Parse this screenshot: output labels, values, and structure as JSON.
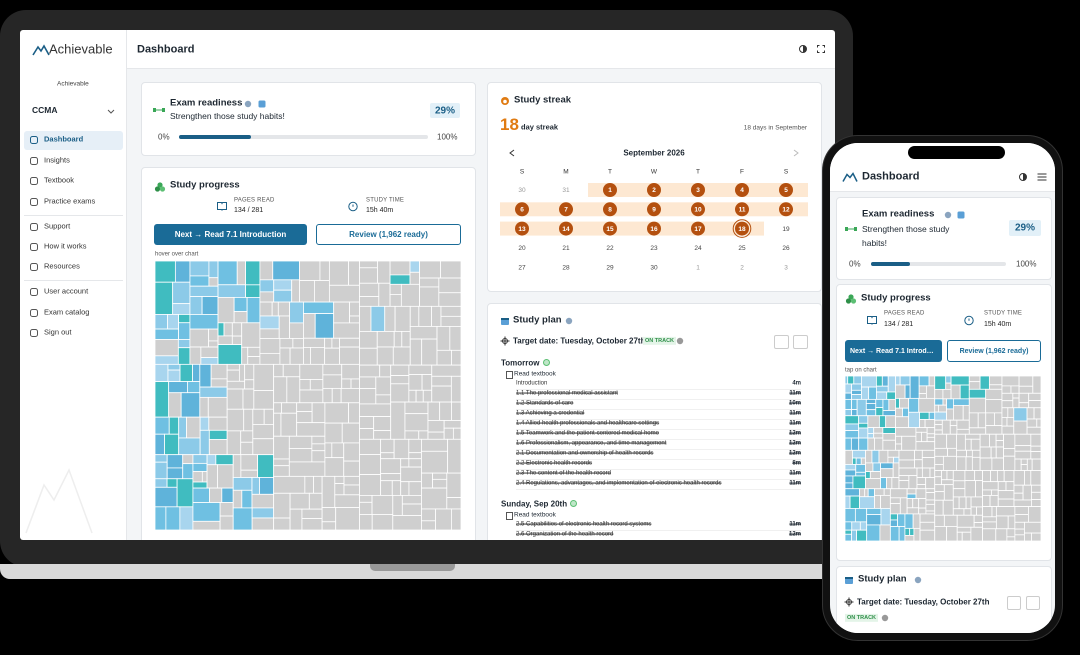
{
  "sidebar": {
    "logo": "Achievable",
    "org": "Achievable",
    "course": "CCMA",
    "nav": [
      [
        "Dashboard",
        "Insights",
        "Textbook",
        "Practice exams"
      ],
      [
        "Support",
        "How it works",
        "Resources"
      ],
      [
        "User account",
        "Exam catalog",
        "Sign out"
      ]
    ]
  },
  "header": {
    "title": "Dashboard"
  },
  "exam_readiness": {
    "title": "Exam readiness",
    "message": "Strengthen those study habits!",
    "value": 29,
    "label": "29%",
    "scale": [
      0,
      100
    ],
    "scale_labels": [
      "0%",
      "100%"
    ]
  },
  "study_progress": {
    "title": "Study progress",
    "pages_label": "PAGES READ",
    "pages": "134 / 281",
    "time_label": "STUDY TIME",
    "time": "15h 40m",
    "next_button": "Next → Read 7.1 Introduction",
    "review_button": "Review (1,962 ready)",
    "chart_hint": "hover over chart",
    "chart_hint_mobile": "tap on chart"
  },
  "study_streak": {
    "title": "Study streak",
    "count": 18,
    "unit": "day streak",
    "summary": "18 days in September",
    "month": "September 2026",
    "weekdays": [
      "S",
      "M",
      "T",
      "W",
      "T",
      "F",
      "S"
    ],
    "weeks": [
      {
        "days": [
          30,
          31,
          1,
          2,
          3,
          4,
          5
        ],
        "states": [
          "out",
          "out",
          "done",
          "done",
          "done",
          "done",
          "done"
        ]
      },
      {
        "days": [
          6,
          7,
          8,
          9,
          10,
          11,
          12
        ],
        "states": [
          "done",
          "done",
          "done",
          "done",
          "done",
          "done",
          "done"
        ]
      },
      {
        "days": [
          13,
          14,
          15,
          16,
          17,
          18,
          19
        ],
        "states": [
          "done",
          "done",
          "done",
          "done",
          "done",
          "today",
          "none"
        ]
      },
      {
        "days": [
          20,
          21,
          22,
          23,
          24,
          25,
          26
        ],
        "states": [
          "none",
          "none",
          "none",
          "none",
          "none",
          "none",
          "none"
        ]
      },
      {
        "days": [
          27,
          28,
          29,
          30,
          1,
          2,
          3
        ],
        "states": [
          "none",
          "none",
          "none",
          "none",
          "out",
          "out",
          "out"
        ]
      }
    ]
  },
  "study_plan": {
    "title": "Study plan",
    "target": "Target date: Tuesday, October 27th",
    "status": "ON TRACK",
    "days": [
      {
        "label": "Tomorrow",
        "task": "Read textbook",
        "items": [
          {
            "title": "Introduction",
            "time": "4m",
            "done": false
          },
          {
            "title": "1.1 The professional medical assistant",
            "time": "11m",
            "done": true
          },
          {
            "title": "1.2 Standards of care",
            "time": "10m",
            "done": true
          },
          {
            "title": "1.3 Achieving a credential",
            "time": "11m",
            "done": true
          },
          {
            "title": "1.4 Allied health professionals and healthcare settings",
            "time": "11m",
            "done": true
          },
          {
            "title": "1.5 Teamwork and the patient-centered medical home",
            "time": "12m",
            "done": true
          },
          {
            "title": "1.6 Professionalism, appearance, and time management",
            "time": "12m",
            "done": true
          },
          {
            "title": "2.1 Documentation and ownership of health records",
            "time": "12m",
            "done": true
          },
          {
            "title": "2.2 Electronic health records",
            "time": "8m",
            "done": true
          },
          {
            "title": "2.3 The content of the health record",
            "time": "11m",
            "done": true
          },
          {
            "title": "2.4 Regulations, advantages, and implementation of electronic health records",
            "time": "11m",
            "done": true
          }
        ]
      },
      {
        "label": "Sunday, Sep 20th",
        "task": "Read textbook",
        "items": [
          {
            "title": "2.5 Capabilities of electronic health record systems",
            "time": "11m",
            "done": true
          },
          {
            "title": "2.6 Organization of the health record",
            "time": "12m",
            "done": true
          }
        ]
      }
    ]
  }
}
